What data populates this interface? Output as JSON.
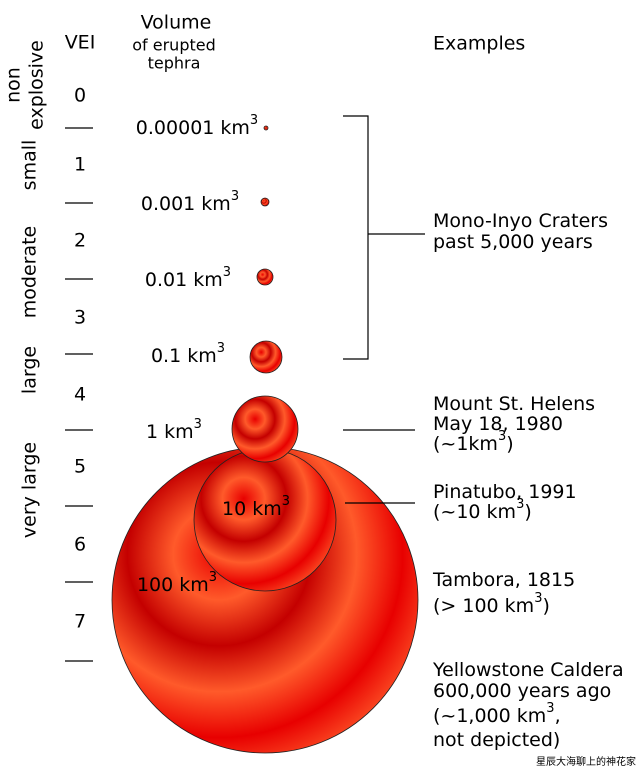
{
  "header": {
    "vei": "VEI",
    "volume": [
      "Volume",
      "of erupted",
      "tephra"
    ],
    "examples": "Examples"
  },
  "vei_levels": [
    "0",
    "1",
    "2",
    "3",
    "4",
    "5",
    "6",
    "7"
  ],
  "categories": [
    [
      "non",
      "explosive"
    ],
    [
      "small"
    ],
    [
      "moderate"
    ],
    [
      "large"
    ],
    [
      "very large"
    ]
  ],
  "volumes": [
    [
      {
        "text": "0.00001 km"
      },
      {
        "text": "3",
        "sup": true
      }
    ],
    [
      {
        "text": "0.001 km"
      },
      {
        "text": "3",
        "sup": true
      }
    ],
    [
      {
        "text": "0.01 km"
      },
      {
        "text": "3",
        "sup": true
      }
    ],
    [
      {
        "text": "0.1 km"
      },
      {
        "text": "3",
        "sup": true
      }
    ],
    [
      {
        "text": "1 km"
      },
      {
        "text": "3",
        "sup": true
      }
    ],
    [
      {
        "text": "10 km"
      },
      {
        "text": "3",
        "sup": true
      }
    ],
    [
      {
        "text": "100 km"
      },
      {
        "text": "3",
        "sup": true
      }
    ]
  ],
  "examples": [
    [
      [
        {
          "text": "Mono-Inyo Craters"
        }
      ],
      [
        {
          "text": "past 5,000 years"
        }
      ]
    ],
    [
      [
        {
          "text": "Mount St. Helens"
        }
      ],
      [
        {
          "text": "May 18, 1980"
        }
      ],
      [
        {
          "text": "(~1km"
        },
        {
          "text": "3",
          "sup": true
        },
        {
          "text": ")"
        }
      ]
    ],
    [
      [
        {
          "text": "Pinatubo, 1991"
        }
      ],
      [
        {
          "text": "(~10 km"
        },
        {
          "text": "3",
          "sup": true
        },
        {
          "text": ")"
        }
      ]
    ],
    [
      [
        {
          "text": "Tambora, 1815"
        }
      ],
      [
        {
          "text": "(> 100 km"
        },
        {
          "text": "3",
          "sup": true
        },
        {
          "text": ")"
        }
      ]
    ],
    [
      [
        {
          "text": "Yellowstone Caldera"
        }
      ],
      [
        {
          "text": "600,000 years ago"
        }
      ],
      [
        {
          "text": "(~1,000 km"
        },
        {
          "text": "3",
          "sup": true
        },
        {
          "text": ","
        }
      ],
      [
        {
          "text": " not depicted)"
        }
      ]
    ]
  ],
  "watermark": "星辰大海聊上的神花家"
}
